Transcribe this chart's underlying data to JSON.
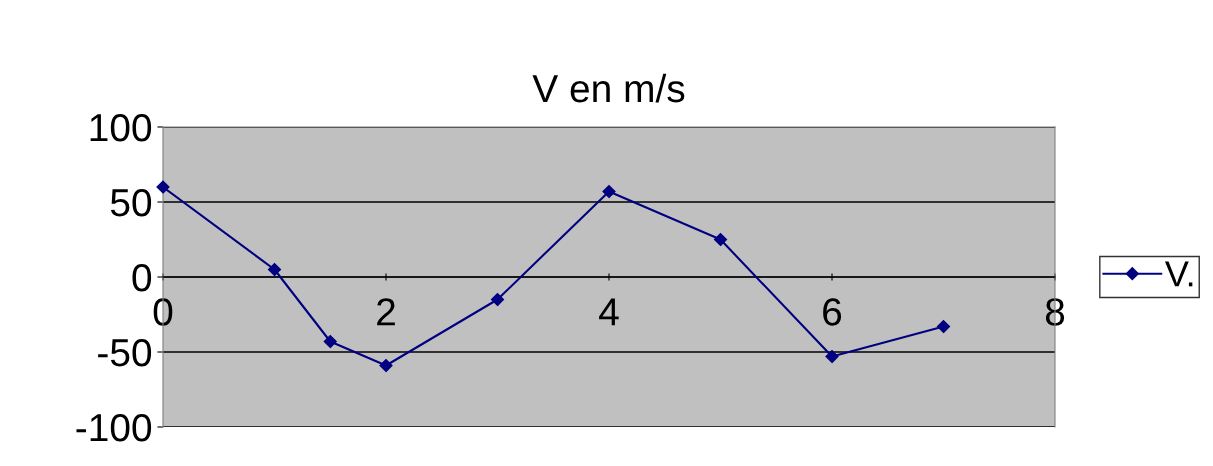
{
  "chart_data": {
    "type": "line",
    "title": "V en m/s",
    "x": [
      0,
      1,
      1.5,
      2,
      3,
      4,
      5,
      6,
      7
    ],
    "series": [
      {
        "name": "V.",
        "color": "#000080",
        "values": [
          60,
          5,
          -43,
          -59,
          -15,
          57,
          25,
          -53,
          -33
        ]
      }
    ],
    "xlim": [
      0,
      8
    ],
    "xticks": [
      0,
      2,
      4,
      6,
      8
    ],
    "ylim": [
      -100,
      100
    ],
    "yticks": [
      -100,
      -50,
      0,
      50,
      100
    ],
    "grid": "y",
    "legend": "right",
    "marker": "diamond",
    "line_style": "solid"
  }
}
